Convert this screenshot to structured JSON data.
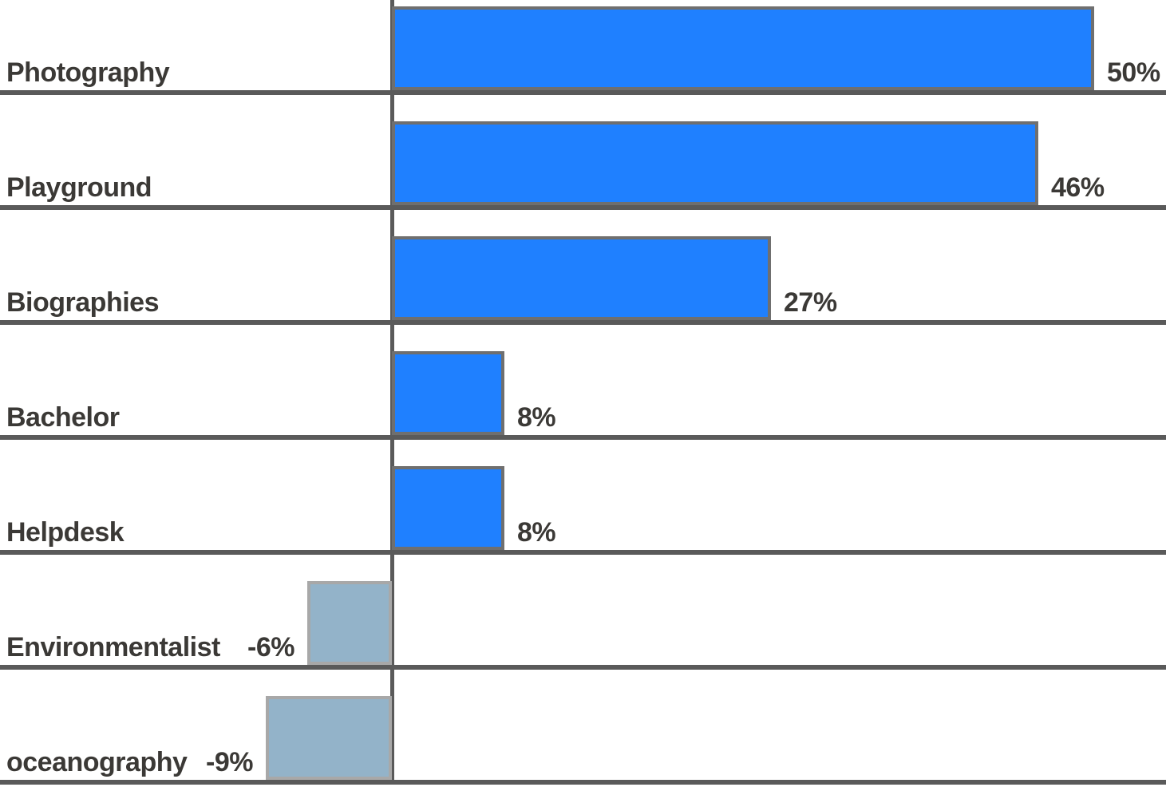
{
  "chart_data": {
    "type": "bar",
    "orientation": "horizontal",
    "title": "",
    "xlabel": "",
    "ylabel": "",
    "legend": "none",
    "grid": "horizontal row separators only",
    "axis": "vertical zero line between positive and negative bars",
    "xlim": [
      -10,
      55
    ],
    "categories": [
      "Photography",
      "Playground",
      "Biographies",
      "Bachelor",
      "Helpdesk",
      "Environmentalist",
      "oceanography"
    ],
    "values": [
      50,
      46,
      27,
      8,
      8,
      -6,
      -9
    ],
    "value_labels": [
      "50%",
      "46%",
      "27%",
      "8%",
      "8%",
      "-6%",
      "-9%"
    ],
    "colors": {
      "positive_bar": "#1f80ff",
      "positive_bar_border": "#6f6f6f",
      "negative_bar": "#93b3c9",
      "negative_bar_border": "#a8a8a8",
      "separator_line": "#5a5a5a",
      "axis_line": "#5a5a5a",
      "label_text": "#3b3936",
      "background": "#ffffff"
    }
  }
}
